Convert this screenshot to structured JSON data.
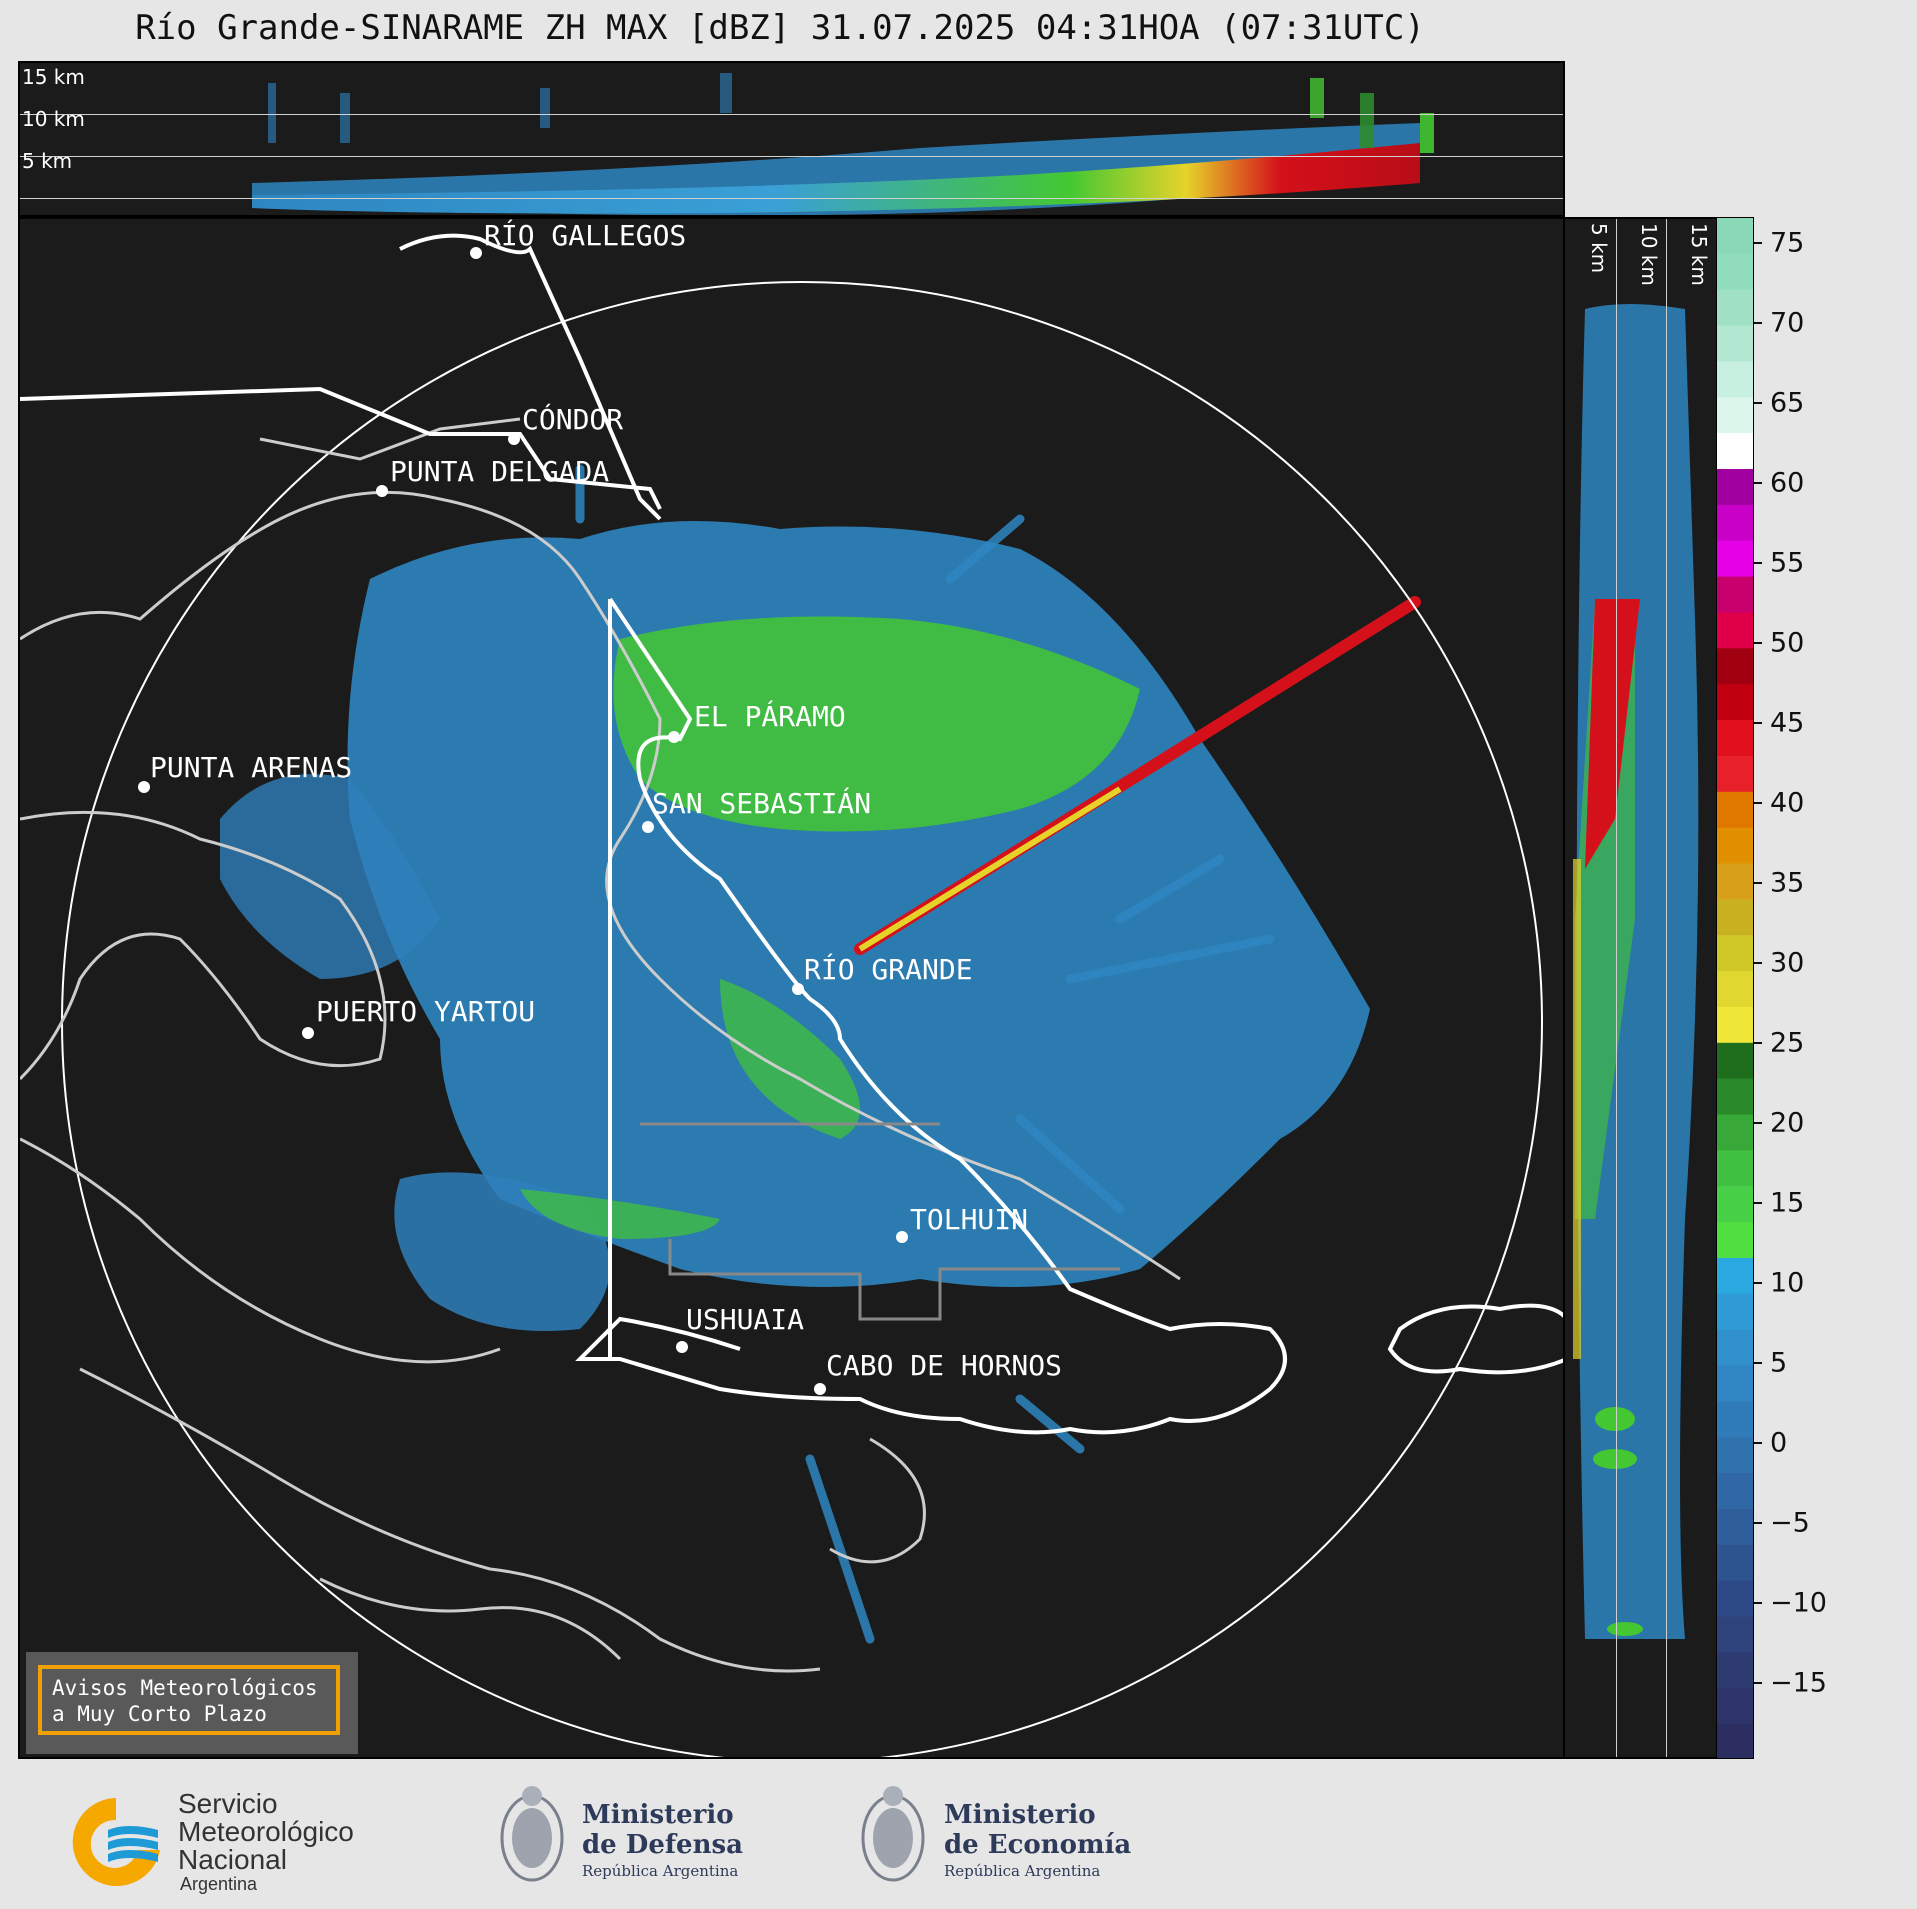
{
  "title": "Río Grande-SINARAME ZH MAX [dBZ] 31.07.2025 04:31HOA (07:31UTC)",
  "altitudes_top": [
    "15 km",
    "10 km",
    "5 km"
  ],
  "altitudes_right": [
    "5 km",
    "10 km",
    "15 km"
  ],
  "colorbar": {
    "unit": "dBZ",
    "ticks": [
      "75",
      "70",
      "65",
      "60",
      "55",
      "50",
      "45",
      "40",
      "35",
      "30",
      "25",
      "20",
      "15",
      "10",
      "5",
      "0",
      "−5",
      "−10",
      "−15"
    ]
  },
  "cities": [
    {
      "name": "RÍO GALLEGOS"
    },
    {
      "name": "CÓNDOR"
    },
    {
      "name": "PUNTA DELGADA"
    },
    {
      "name": "EL PÁRAMO"
    },
    {
      "name": "SAN SEBASTIÁN"
    },
    {
      "name": "PUNTA ARENAS"
    },
    {
      "name": "RÍO GRANDE"
    },
    {
      "name": "PUERTO YARTOU"
    },
    {
      "name": "TOLHUIN"
    },
    {
      "name": "USHUAIA"
    },
    {
      "name": "CABO DE HORNOS"
    }
  ],
  "alert": {
    "line1": "Avisos Meteorológicos",
    "line2": "a Muy Corto Plazo"
  },
  "logos": {
    "smn": {
      "line1": "Servicio",
      "line2": "Meteorológico",
      "line3": "Nacional",
      "line4": "Argentina"
    },
    "defensa": {
      "line1": "Ministerio",
      "line2": "de Defensa",
      "line3": "República Argentina"
    },
    "economia": {
      "line1": "Ministerio",
      "line2": "de Economía",
      "line3": "República Argentina"
    }
  },
  "colors": {
    "background": "#1b1b1b",
    "echo_blue": "#2e86c1",
    "echo_green": "#44c832",
    "echo_red": "#d4101a",
    "alert_border": "#f0a000",
    "smn_yellow": "#f5a800",
    "smn_blue": "#1e9ad6"
  }
}
